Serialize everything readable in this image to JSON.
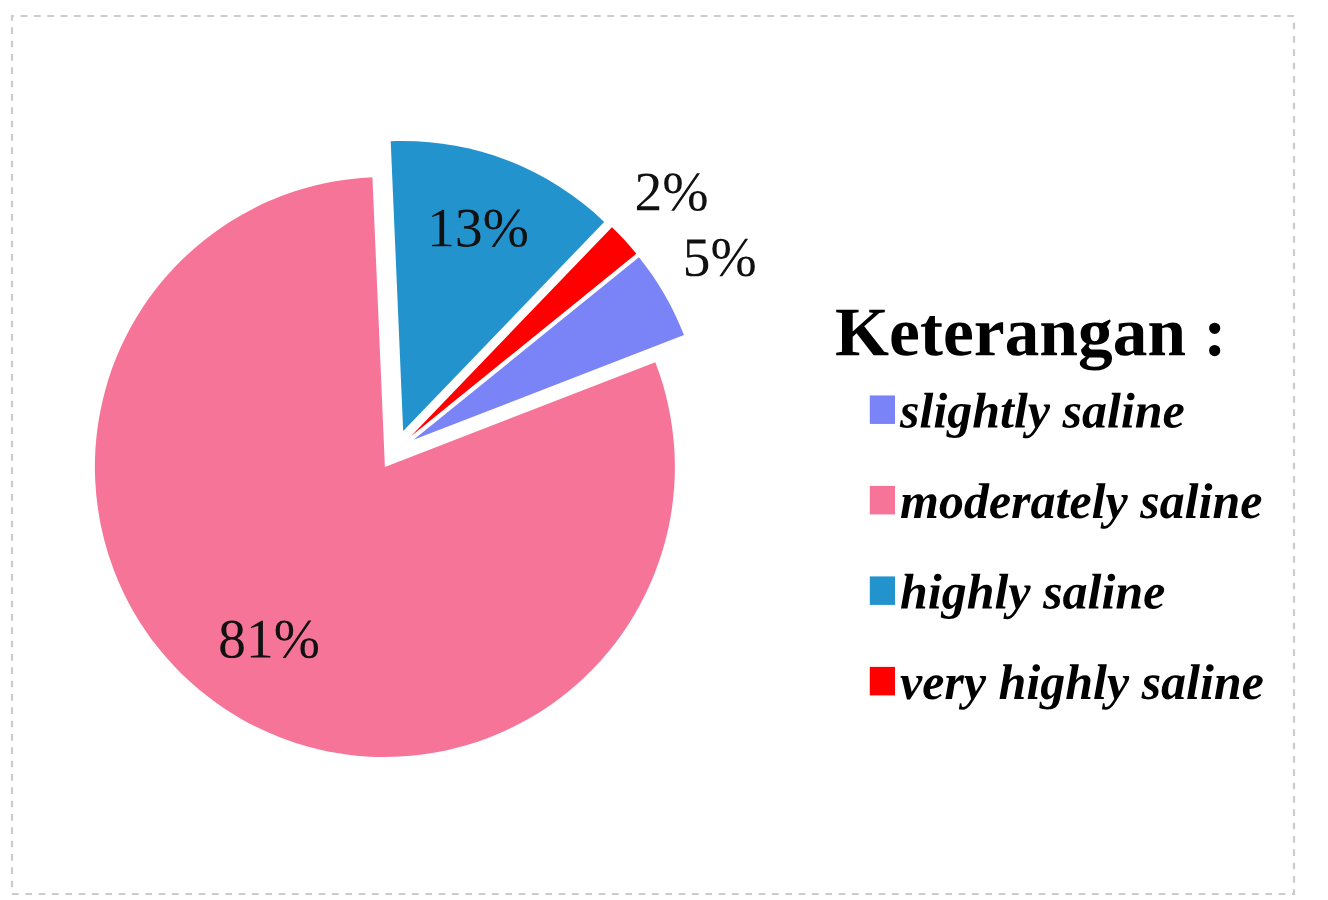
{
  "chart_data": {
    "type": "pie",
    "categories": [
      "slightly saline",
      "moderately saline",
      "highly saline",
      "very highly saline"
    ],
    "values": [
      5,
      81,
      13,
      2
    ],
    "colors": [
      "#7b84f7",
      "#f77499",
      "#2393cd",
      "#fe0000"
    ],
    "value_labels": [
      "5%",
      "81%",
      "13%",
      "2%"
    ],
    "legend": "right",
    "legend_title": "Keterangan :"
  }
}
